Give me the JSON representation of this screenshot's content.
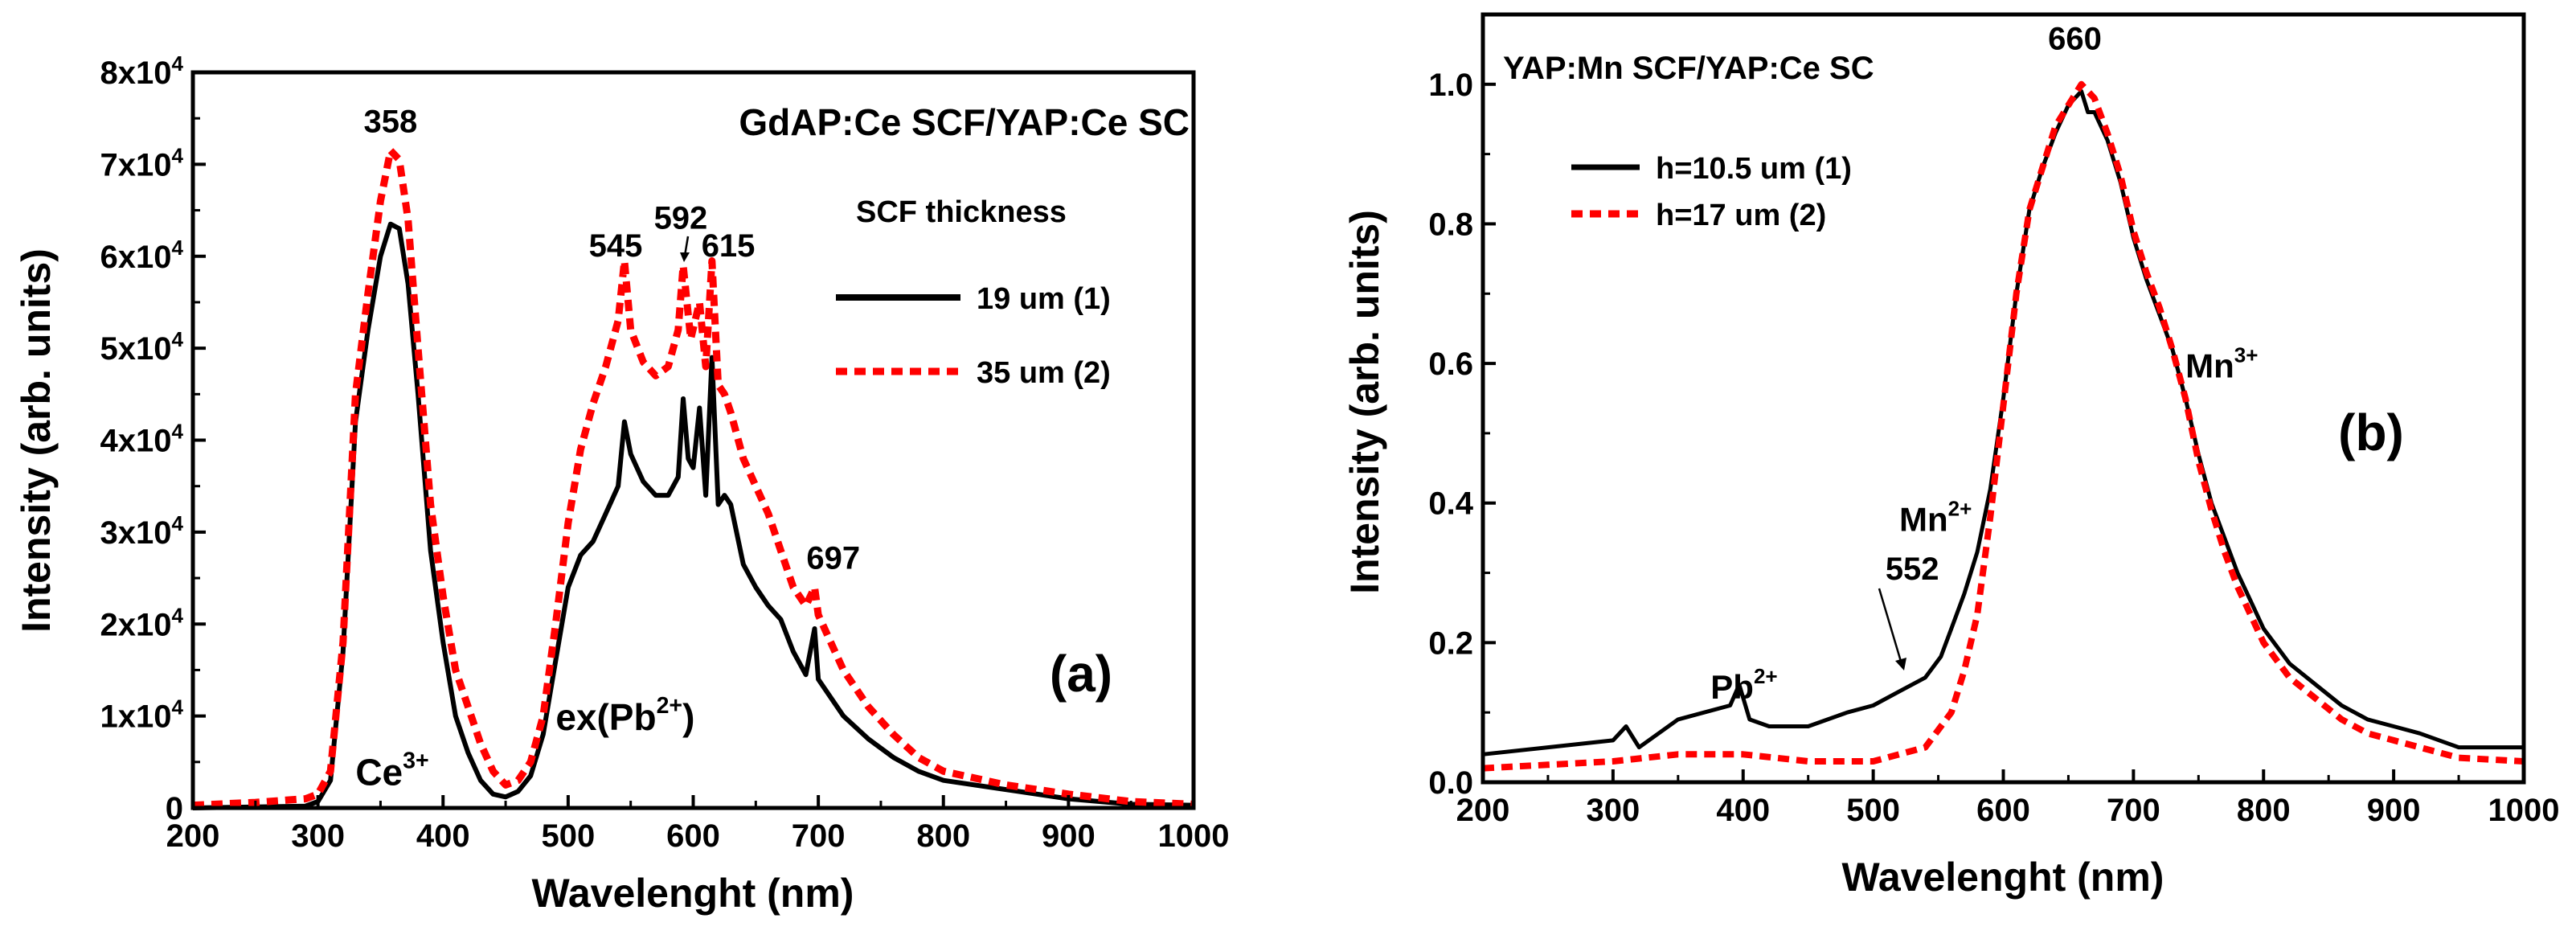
{
  "chart_data": [
    {
      "type": "line",
      "panel": "(a)",
      "title": "GdAP:Ce SCF/YAP:Ce SC",
      "xlabel": "Wavelenght (nm)",
      "ylabel": "Intensity (arb. units)",
      "xlim": [
        200,
        1000
      ],
      "ylim": [
        0,
        80000
      ],
      "xticks": [
        200,
        300,
        400,
        500,
        600,
        700,
        800,
        900,
        1000
      ],
      "yticks": [
        {
          "value": 0,
          "label": "0"
        },
        {
          "value": 10000,
          "label": "1x10^4"
        },
        {
          "value": 20000,
          "label": "2x10^4"
        },
        {
          "value": 30000,
          "label": "3x10^4"
        },
        {
          "value": 40000,
          "label": "4x10^4"
        },
        {
          "value": 50000,
          "label": "5x10^4"
        },
        {
          "value": 60000,
          "label": "6x10^4"
        },
        {
          "value": 70000,
          "label": "7x10^4"
        },
        {
          "value": 80000,
          "label": "8x10^4"
        }
      ],
      "legend_title": "SCF thickness",
      "legend_position": "right",
      "series": [
        {
          "name": "19 um (1)",
          "color": "#000000",
          "style": "solid",
          "points": [
            [
              200,
              0
            ],
            [
              290,
              200
            ],
            [
              300,
              700
            ],
            [
              310,
              3000
            ],
            [
              320,
              17000
            ],
            [
              330,
              42000
            ],
            [
              340,
              52000
            ],
            [
              350,
              60000
            ],
            [
              358,
              63500
            ],
            [
              365,
              63000
            ],
            [
              372,
              57000
            ],
            [
              380,
              45000
            ],
            [
              390,
              28000
            ],
            [
              400,
              18000
            ],
            [
              410,
              10000
            ],
            [
              420,
              6000
            ],
            [
              430,
              3000
            ],
            [
              440,
              1500
            ],
            [
              450,
              1200
            ],
            [
              460,
              1800
            ],
            [
              470,
              3500
            ],
            [
              480,
              8000
            ],
            [
              490,
              16000
            ],
            [
              500,
              24000
            ],
            [
              510,
              27500
            ],
            [
              520,
              29000
            ],
            [
              530,
              32000
            ],
            [
              540,
              35000
            ],
            [
              545,
              42000
            ],
            [
              550,
              38500
            ],
            [
              560,
              35500
            ],
            [
              570,
              34000
            ],
            [
              580,
              34000
            ],
            [
              588,
              36000
            ],
            [
              592,
              44500
            ],
            [
              596,
              38000
            ],
            [
              600,
              37000
            ],
            [
              605,
              43500
            ],
            [
              610,
              34000
            ],
            [
              615,
              49000
            ],
            [
              620,
              33000
            ],
            [
              625,
              34000
            ],
            [
              630,
              33000
            ],
            [
              640,
              26500
            ],
            [
              650,
              24000
            ],
            [
              660,
              22000
            ],
            [
              670,
              20500
            ],
            [
              680,
              17000
            ],
            [
              690,
              14500
            ],
            [
              697,
              19500
            ],
            [
              700,
              14000
            ],
            [
              720,
              10000
            ],
            [
              740,
              7500
            ],
            [
              760,
              5500
            ],
            [
              780,
              4000
            ],
            [
              800,
              3000
            ],
            [
              850,
              2000
            ],
            [
              900,
              1000
            ],
            [
              950,
              400
            ],
            [
              1000,
              300
            ]
          ]
        },
        {
          "name": "35 um (2)",
          "color": "#ff0000",
          "style": "dashed",
          "points": [
            [
              200,
              300
            ],
            [
              250,
              600
            ],
            [
              290,
              1000
            ],
            [
              300,
              1500
            ],
            [
              310,
              4000
            ],
            [
              320,
              18000
            ],
            [
              330,
              45000
            ],
            [
              340,
              56000
            ],
            [
              350,
              66000
            ],
            [
              358,
              71500
            ],
            [
              365,
              70500
            ],
            [
              372,
              64000
            ],
            [
              380,
              50000
            ],
            [
              390,
              33000
            ],
            [
              400,
              23000
            ],
            [
              410,
              15000
            ],
            [
              420,
              11000
            ],
            [
              430,
              7000
            ],
            [
              440,
              4000
            ],
            [
              450,
              2500
            ],
            [
              460,
              3000
            ],
            [
              470,
              5000
            ],
            [
              480,
              10000
            ],
            [
              490,
              20000
            ],
            [
              500,
              31000
            ],
            [
              510,
              39000
            ],
            [
              520,
              44000
            ],
            [
              530,
              48000
            ],
            [
              540,
              53000
            ],
            [
              545,
              59500
            ],
            [
              550,
              52000
            ],
            [
              560,
              48500
            ],
            [
              570,
              47000
            ],
            [
              580,
              48000
            ],
            [
              588,
              52000
            ],
            [
              592,
              59000
            ],
            [
              598,
              51000
            ],
            [
              605,
              55000
            ],
            [
              610,
              48000
            ],
            [
              615,
              59500
            ],
            [
              620,
              46000
            ],
            [
              625,
              45000
            ],
            [
              630,
              43000
            ],
            [
              640,
              38000
            ],
            [
              650,
              35000
            ],
            [
              660,
              32000
            ],
            [
              670,
              28000
            ],
            [
              680,
              24000
            ],
            [
              690,
              22000
            ],
            [
              697,
              24000
            ],
            [
              700,
              21000
            ],
            [
              720,
              15000
            ],
            [
              740,
              11000
            ],
            [
              760,
              8000
            ],
            [
              780,
              5500
            ],
            [
              800,
              4000
            ],
            [
              850,
              2500
            ],
            [
              900,
              1500
            ],
            [
              950,
              700
            ],
            [
              1000,
              400
            ]
          ]
        }
      ],
      "annotations": [
        {
          "text": "358",
          "x": 358,
          "y": 73500
        },
        {
          "text": "545",
          "x": 538,
          "y": 60000
        },
        {
          "text": "592",
          "x": 590,
          "y": 63000
        },
        {
          "text": "615",
          "x": 628,
          "y": 60000
        },
        {
          "text": "697",
          "x": 712,
          "y": 26000
        }
      ],
      "ion_labels": [
        {
          "text": "Ce",
          "superscript": "3+",
          "x": 330,
          "y": 2500
        },
        {
          "text": "ex(Pb",
          "superscript": "2+",
          "closing": ")",
          "x": 490,
          "y": 8500
        }
      ]
    },
    {
      "type": "line",
      "panel": "(b)",
      "title": "YAP:Mn SCF/YAP:Ce SC",
      "xlabel": "Wavelenght (nm)",
      "ylabel": "Intensity (arb. units)",
      "xlim": [
        200,
        1000
      ],
      "ylim": [
        0,
        1.1
      ],
      "xticks": [
        200,
        300,
        400,
        500,
        600,
        700,
        800,
        900,
        1000
      ],
      "yticks": [
        {
          "value": 0.0,
          "label": "0.0"
        },
        {
          "value": 0.2,
          "label": "0.2"
        },
        {
          "value": 0.4,
          "label": "0.4"
        },
        {
          "value": 0.6,
          "label": "0.6"
        },
        {
          "value": 0.8,
          "label": "0.8"
        },
        {
          "value": 1.0,
          "label": "1.0"
        }
      ],
      "legend_position": "top-left",
      "series": [
        {
          "name": "h=10.5 um (1)",
          "color": "#000000",
          "style": "solid",
          "points": [
            [
              200,
              0.04
            ],
            [
              250,
              0.05
            ],
            [
              300,
              0.06
            ],
            [
              310,
              0.08
            ],
            [
              320,
              0.05
            ],
            [
              350,
              0.09
            ],
            [
              370,
              0.1
            ],
            [
              390,
              0.11
            ],
            [
              397,
              0.14
            ],
            [
              405,
              0.09
            ],
            [
              420,
              0.08
            ],
            [
              450,
              0.08
            ],
            [
              480,
              0.1
            ],
            [
              500,
              0.11
            ],
            [
              520,
              0.13
            ],
            [
              540,
              0.15
            ],
            [
              552,
              0.18
            ],
            [
              560,
              0.22
            ],
            [
              570,
              0.27
            ],
            [
              580,
              0.33
            ],
            [
              590,
              0.42
            ],
            [
              600,
              0.55
            ],
            [
              610,
              0.7
            ],
            [
              620,
              0.82
            ],
            [
              630,
              0.88
            ],
            [
              640,
              0.93
            ],
            [
              650,
              0.97
            ],
            [
              660,
              0.99
            ],
            [
              665,
              0.96
            ],
            [
              670,
              0.96
            ],
            [
              680,
              0.92
            ],
            [
              690,
              0.86
            ],
            [
              700,
              0.78
            ],
            [
              710,
              0.72
            ],
            [
              720,
              0.67
            ],
            [
              730,
              0.62
            ],
            [
              740,
              0.55
            ],
            [
              750,
              0.47
            ],
            [
              760,
              0.4
            ],
            [
              770,
              0.35
            ],
            [
              780,
              0.3
            ],
            [
              800,
              0.22
            ],
            [
              820,
              0.17
            ],
            [
              840,
              0.14
            ],
            [
              860,
              0.11
            ],
            [
              880,
              0.09
            ],
            [
              900,
              0.08
            ],
            [
              920,
              0.07
            ],
            [
              950,
              0.05
            ],
            [
              1000,
              0.05
            ]
          ]
        },
        {
          "name": "h=17 um (2)",
          "color": "#ff0000",
          "style": "dashed",
          "points": [
            [
              200,
              0.02
            ],
            [
              250,
              0.025
            ],
            [
              300,
              0.03
            ],
            [
              350,
              0.04
            ],
            [
              400,
              0.04
            ],
            [
              450,
              0.03
            ],
            [
              500,
              0.03
            ],
            [
              540,
              0.05
            ],
            [
              560,
              0.1
            ],
            [
              570,
              0.16
            ],
            [
              580,
              0.24
            ],
            [
              590,
              0.38
            ],
            [
              600,
              0.54
            ],
            [
              610,
              0.7
            ],
            [
              620,
              0.82
            ],
            [
              630,
              0.88
            ],
            [
              640,
              0.94
            ],
            [
              650,
              0.97
            ],
            [
              660,
              1.0
            ],
            [
              670,
              0.98
            ],
            [
              680,
              0.93
            ],
            [
              690,
              0.87
            ],
            [
              700,
              0.79
            ],
            [
              710,
              0.73
            ],
            [
              720,
              0.68
            ],
            [
              730,
              0.62
            ],
            [
              740,
              0.55
            ],
            [
              750,
              0.46
            ],
            [
              760,
              0.39
            ],
            [
              770,
              0.33
            ],
            [
              780,
              0.28
            ],
            [
              800,
              0.2
            ],
            [
              820,
              0.15
            ],
            [
              840,
              0.12
            ],
            [
              860,
              0.09
            ],
            [
              880,
              0.07
            ],
            [
              900,
              0.06
            ],
            [
              920,
              0.05
            ],
            [
              950,
              0.035
            ],
            [
              1000,
              0.03
            ]
          ]
        }
      ],
      "annotations": [
        {
          "text": "660",
          "x": 655,
          "y": 1.05
        },
        {
          "text": "552",
          "x": 530,
          "y": 0.29
        }
      ],
      "ion_labels": [
        {
          "text": "Pb",
          "superscript": "2+",
          "x": 375,
          "y": 0.12
        },
        {
          "text": "Mn",
          "superscript": "2+",
          "x": 520,
          "y": 0.36
        },
        {
          "text": "Mn",
          "superscript": "3+",
          "x": 740,
          "y": 0.58
        }
      ]
    }
  ]
}
